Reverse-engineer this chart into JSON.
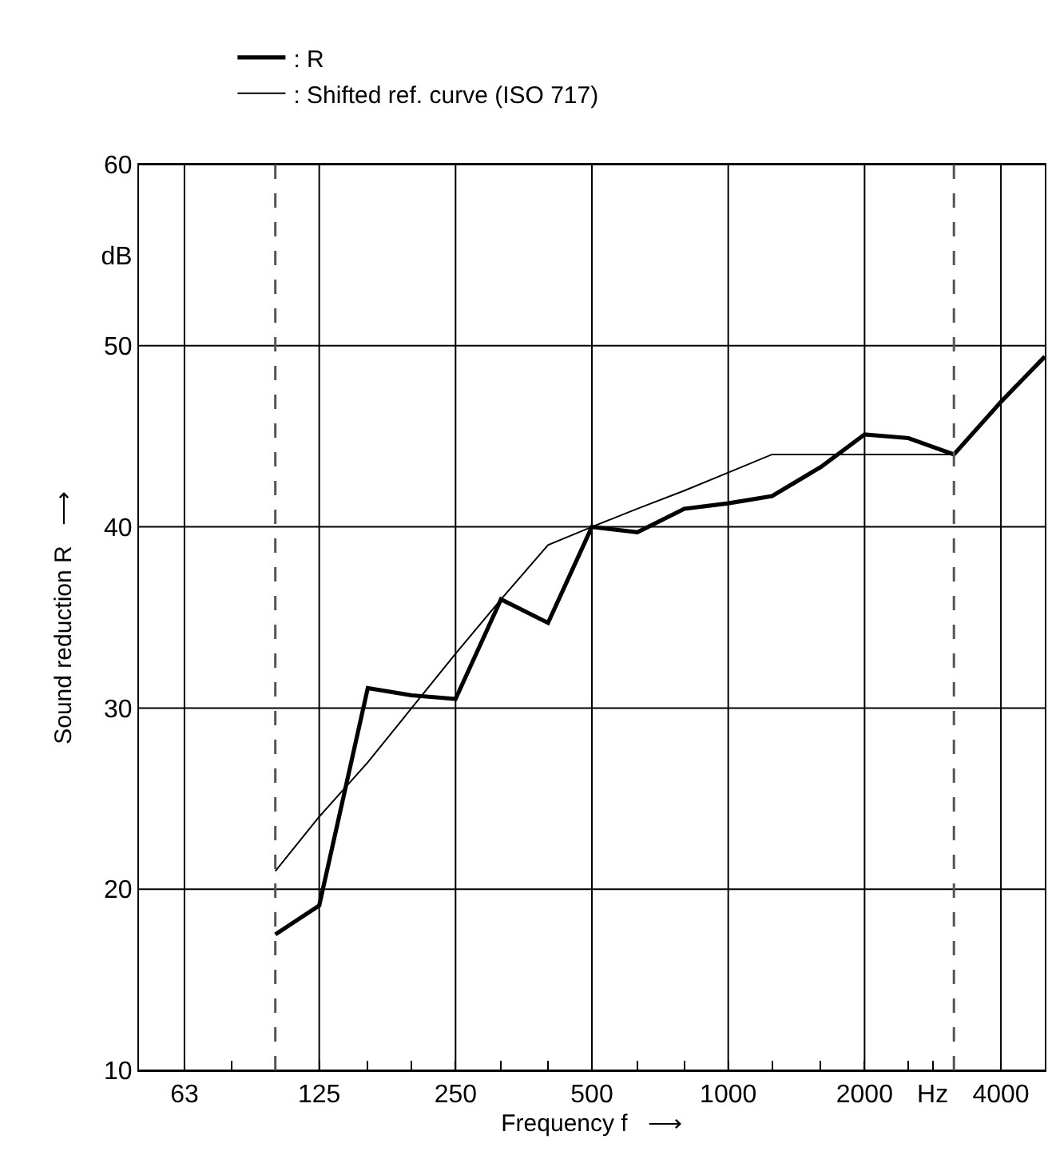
{
  "chart_data": {
    "type": "line",
    "xlabel": "Frequency f   ⟶",
    "ylabel": "Sound reduction R   ⟶",
    "x": [
      100,
      125,
      160,
      200,
      250,
      315,
      400,
      500,
      630,
      800,
      1000,
      1250,
      1600,
      2000,
      2500,
      3150,
      4000,
      5000
    ],
    "series": [
      {
        "name": ": R",
        "color": "#000000",
        "values": [
          17.5,
          19.1,
          31.1,
          30.7,
          30.5,
          36.0,
          34.7,
          40.0,
          39.7,
          41.0,
          41.3,
          41.7,
          43.3,
          45.1,
          44.9,
          44.0,
          46.9,
          49.4
        ]
      },
      {
        "name": ": Shifted ref. curve (ISO 717)",
        "color": "#000000",
        "x": [
          100,
          125,
          160,
          200,
          250,
          315,
          400,
          500,
          630,
          800,
          1000,
          1250,
          1600,
          2000,
          2500,
          3150
        ],
        "values": [
          21,
          24,
          27,
          30,
          33,
          36,
          39,
          40,
          41,
          42,
          43,
          44,
          44,
          44,
          44,
          44
        ]
      }
    ],
    "log": "x",
    "xlim": [
      50,
      5000
    ],
    "xticks": [
      63,
      {
        "value": 80,
        "label": null
      },
      {
        "value": 100,
        "label": null
      },
      125,
      {
        "value": 160,
        "label": null
      },
      {
        "value": 200,
        "label": null
      },
      250,
      {
        "value": 315,
        "label": null
      },
      {
        "value": 400,
        "label": null
      },
      500,
      {
        "value": 630,
        "label": null
      },
      {
        "value": 800,
        "label": null
      },
      1000,
      {
        "value": 1250,
        "label": null
      },
      {
        "value": 1600,
        "label": null
      },
      2000,
      {
        "value": 2500,
        "label": null
      },
      {
        "value": 2828,
        "label": "Hz"
      },
      4000
    ],
    "ylim": [
      10,
      60
    ],
    "yticks": [
      10,
      20,
      30,
      40,
      50,
      {
        "value": 55,
        "label": "dB"
      },
      60
    ],
    "ref_lines": [
      {
        "axis": "x",
        "value": 100,
        "color": "#555555",
        "line_style": "dashed"
      },
      {
        "axis": "x",
        "value": 3150,
        "color": "#555555",
        "line_style": "dashed"
      }
    ],
    "grid": true,
    "legend": "top left",
    "line_style": "solid",
    "marker": "none"
  }
}
